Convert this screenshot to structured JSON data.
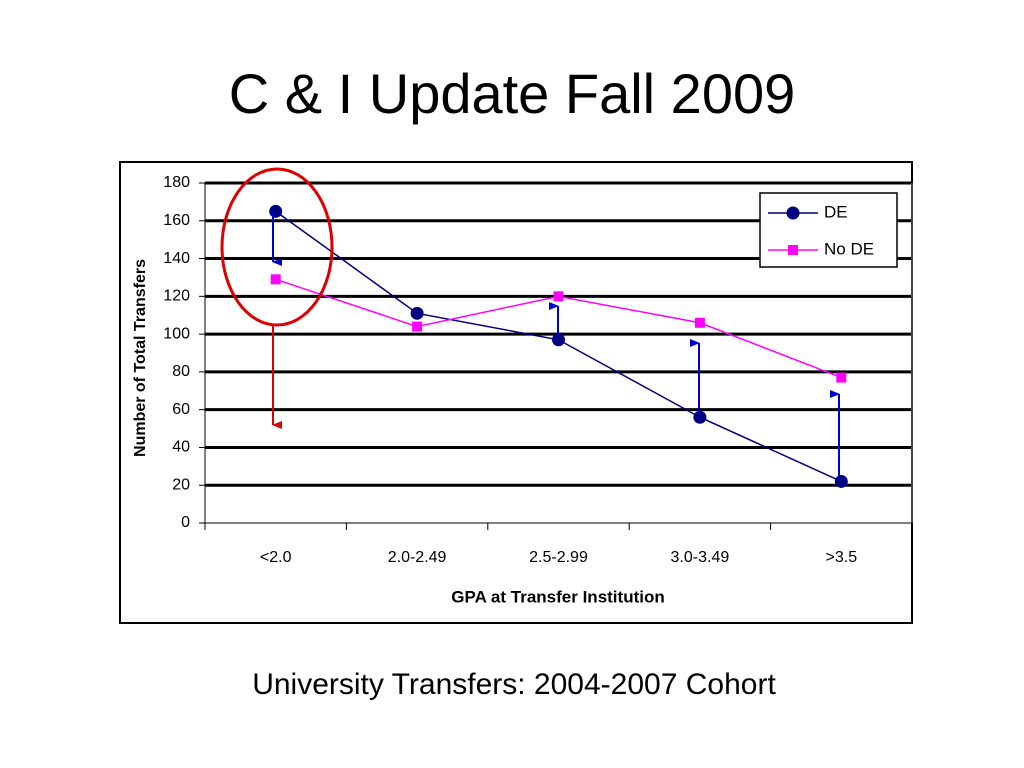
{
  "chart_data": {
    "type": "line",
    "title": "C & I Update Fall 2009",
    "subtitle": "University Transfers: 2004-2007 Cohort",
    "x_label": "GPA at Transfer Institution",
    "y_label": "Number of Total Transfers",
    "categories": [
      "<2.0",
      "2.0-2.49",
      "2.5-2.99",
      "3.0-3.49",
      ">3.5"
    ],
    "series": [
      {
        "name": "DE",
        "color": "#000080",
        "values": [
          165,
          111,
          97,
          56,
          22
        ]
      },
      {
        "name": "No DE",
        "color": "#ff00ff",
        "values": [
          129,
          104,
          120,
          106,
          77
        ]
      }
    ],
    "ylim": [
      0,
      180
    ],
    "yticks": [
      0,
      20,
      40,
      60,
      80,
      100,
      120,
      140,
      160,
      180
    ],
    "grid": true,
    "legend": "top-right"
  }
}
